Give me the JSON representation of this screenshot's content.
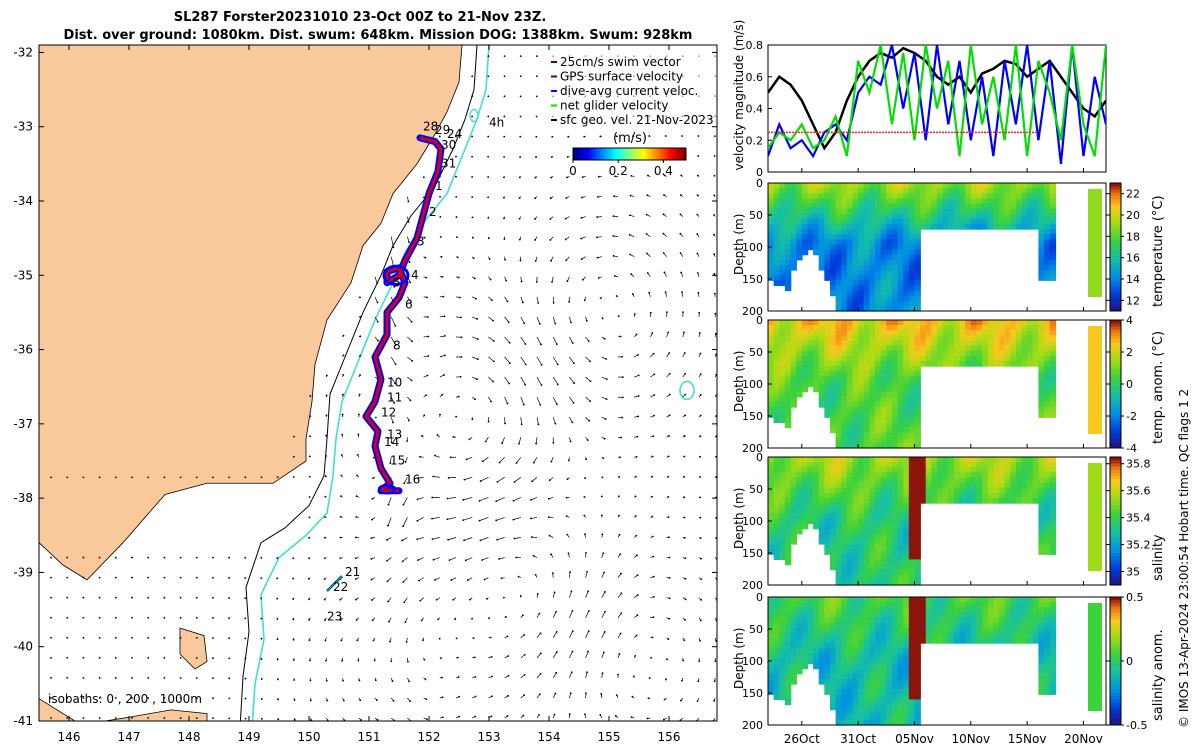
{
  "header": {
    "title_line1": "SL287 Forster20231010 23-Oct 00Z to 21-Nov 23Z.",
    "title_line2": "Dist. over ground: 1080km. Dist. swum: 648km. Mission DOG: 1388km. Swum: 928km"
  },
  "side_note": "© IMOS 13-Apr-2024 23:00:54 Hobart time. QC flags 1  2",
  "colors": {
    "land": "#F9C89B",
    "isobath_cyan": "#40E0D0",
    "track_red": "#DD0000",
    "track_blue": "#0000FF",
    "net_green": "#00E000",
    "mag_black": "#000000",
    "ref_red": "#FF2020"
  },
  "chart_data": [
    {
      "type": "scatter",
      "name": "map",
      "xlim": [
        145.5,
        156.8
      ],
      "ylim": [
        -41,
        -31.9
      ],
      "xticks": [
        "146",
        "147",
        "148",
        "149",
        "150",
        "151",
        "152",
        "153",
        "154",
        "155",
        "156"
      ],
      "yticks": [
        "-32",
        "-33",
        "-34",
        "-35",
        "-36",
        "-37",
        "-38",
        "-39",
        "-40",
        "-41"
      ],
      "legend": {
        "placement": "top-right",
        "entries": [
          "25cm/s swim vector",
          "GPS surface velocity",
          "dive-avg current veloc.",
          "net glider velocity",
          "sfc geo. vel. 21-Nov-2023"
        ]
      },
      "colorbar": {
        "label": "(m/s)",
        "ticks": [
          "0",
          "0.2",
          "0.4"
        ],
        "range": [
          0,
          0.5
        ]
      },
      "isobath_label": "isobaths: 0 , 200 , 1000m",
      "track": [
        [
          151.85,
          -33.15
        ],
        [
          152.1,
          -33.2
        ],
        [
          152.2,
          -33.3
        ],
        [
          152.15,
          -33.6
        ],
        [
          152.0,
          -33.9
        ],
        [
          151.9,
          -34.2
        ],
        [
          151.8,
          -34.5
        ],
        [
          151.6,
          -34.8
        ],
        [
          151.5,
          -35.0
        ],
        [
          151.3,
          -35.1
        ],
        [
          151.3,
          -34.95
        ],
        [
          151.5,
          -34.9
        ],
        [
          151.6,
          -35.1
        ],
        [
          151.5,
          -35.3
        ],
        [
          151.3,
          -35.5
        ],
        [
          151.3,
          -35.8
        ],
        [
          151.1,
          -36.1
        ],
        [
          151.2,
          -36.4
        ],
        [
          151.1,
          -36.7
        ],
        [
          150.95,
          -36.9
        ],
        [
          151.15,
          -37.1
        ],
        [
          151.1,
          -37.3
        ],
        [
          151.2,
          -37.6
        ],
        [
          151.35,
          -37.8
        ],
        [
          151.2,
          -37.9
        ],
        [
          151.5,
          -37.9
        ]
      ],
      "track_labels": [
        {
          "text": "28",
          "lon": 151.9,
          "lat": -33.05
        },
        {
          "text": "29",
          "lon": 152.1,
          "lat": -33.1
        },
        {
          "text": "24",
          "lon": 152.3,
          "lat": -33.15
        },
        {
          "text": "30",
          "lon": 152.2,
          "lat": -33.3
        },
        {
          "text": "31",
          "lon": 152.2,
          "lat": -33.55
        },
        {
          "text": "1",
          "lon": 152.1,
          "lat": -33.85
        },
        {
          "text": "2",
          "lon": 152.0,
          "lat": -34.2
        },
        {
          "text": "3",
          "lon": 151.8,
          "lat": -34.6
        },
        {
          "text": "4",
          "lon": 151.7,
          "lat": -35.05
        },
        {
          "text": "5",
          "lon": 151.4,
          "lat": -35.15
        },
        {
          "text": "6",
          "lon": 151.6,
          "lat": -35.45
        },
        {
          "text": "8",
          "lon": 151.4,
          "lat": -36.0
        },
        {
          "text": "10",
          "lon": 151.3,
          "lat": -36.5
        },
        {
          "text": "11",
          "lon": 151.3,
          "lat": -36.7
        },
        {
          "text": "12",
          "lon": 151.2,
          "lat": -36.9
        },
        {
          "text": "13",
          "lon": 151.3,
          "lat": -37.2
        },
        {
          "text": "14",
          "lon": 151.25,
          "lat": -37.3
        },
        {
          "text": "15",
          "lon": 151.35,
          "lat": -37.55
        },
        {
          "text": "16",
          "lon": 151.6,
          "lat": -37.8
        },
        {
          "text": "21",
          "lon": 150.6,
          "lat": -39.05
        },
        {
          "text": "22",
          "lon": 150.4,
          "lat": -39.25
        },
        {
          "text": "23",
          "lon": 150.3,
          "lat": -39.65
        },
        {
          "text": "4h",
          "lon": 153.0,
          "lat": -33.0
        }
      ]
    },
    {
      "type": "line",
      "name": "velocity",
      "ylabel": "velocity magnitude (m/s)",
      "ylim": [
        0,
        0.8
      ],
      "yticks": [
        "0",
        "0.2",
        "0.4",
        "0.6",
        "0.8"
      ],
      "t_range": [
        23,
        53
      ],
      "series": [
        {
          "color": "#000000",
          "t": [
            23,
            24,
            25,
            26,
            27,
            28,
            29,
            30,
            31,
            32,
            33,
            34,
            35,
            36,
            37,
            38,
            39,
            40,
            41,
            42,
            43,
            44,
            45,
            46,
            47,
            48,
            49,
            50,
            51,
            52,
            53
          ],
          "values": [
            0.5,
            0.6,
            0.55,
            0.45,
            0.3,
            0.15,
            0.25,
            0.45,
            0.6,
            0.7,
            0.75,
            0.72,
            0.78,
            0.75,
            0.7,
            0.6,
            0.55,
            0.6,
            0.5,
            0.62,
            0.65,
            0.7,
            0.68,
            0.6,
            0.65,
            0.7,
            0.6,
            0.5,
            0.4,
            0.35,
            0.45
          ]
        },
        {
          "color": "#0000FF",
          "t": [
            23,
            24,
            25,
            26,
            27,
            28,
            29,
            30,
            31,
            32,
            33,
            34,
            35,
            36,
            37,
            38,
            39,
            40,
            41,
            42,
            43,
            44,
            45,
            46,
            47,
            48,
            49,
            50,
            51,
            52,
            53
          ],
          "values": [
            0.1,
            0.3,
            0.15,
            0.2,
            0.1,
            0.25,
            0.3,
            0.2,
            0.5,
            0.6,
            0.55,
            0.8,
            0.4,
            0.75,
            0.2,
            0.8,
            0.3,
            0.7,
            0.2,
            0.6,
            0.1,
            0.7,
            0.3,
            0.8,
            0.2,
            0.7,
            0.05,
            0.8,
            0.1,
            0.6,
            0.3
          ]
        },
        {
          "color": "#00E000",
          "t": [
            23,
            24,
            25,
            26,
            27,
            28,
            29,
            30,
            31,
            32,
            33,
            34,
            35,
            36,
            37,
            38,
            39,
            40,
            41,
            42,
            43,
            44,
            45,
            46,
            47,
            48,
            49,
            50,
            51,
            52,
            53
          ],
          "values": [
            0.15,
            0.25,
            0.2,
            0.3,
            0.15,
            0.2,
            0.35,
            0.1,
            0.7,
            0.5,
            0.8,
            0.3,
            0.75,
            0.2,
            0.8,
            0.4,
            0.7,
            0.1,
            0.8,
            0.3,
            0.6,
            0.2,
            0.8,
            0.1,
            0.7,
            0.5,
            0.2,
            0.8,
            0.3,
            0.1,
            0.8
          ]
        },
        {
          "color": "#FF2020",
          "t": [
            23,
            47
          ],
          "values": [
            0.25,
            0.25
          ]
        }
      ]
    },
    {
      "type": "heatmap",
      "name": "temperature",
      "ylabel": "Depth (m)",
      "cbar_label": "temperature (°C)",
      "cbar_ticks": [
        "22",
        "20",
        "18",
        "16",
        "14",
        "12"
      ],
      "clim": [
        11,
        23
      ],
      "surface_value": 19,
      "deep_value": 14
    },
    {
      "type": "heatmap",
      "name": "temp_anom",
      "ylabel": "Depth (m)",
      "cbar_label": "temp. anom. (°C)",
      "cbar_ticks": [
        "4",
        "2",
        "0",
        "-2",
        "-4"
      ],
      "clim": [
        -4,
        4
      ],
      "surface_value": 2.5,
      "deep_value": 0.5
    },
    {
      "type": "heatmap",
      "name": "salinity",
      "ylabel": "Depth (m)",
      "cbar_label": "salinity",
      "cbar_ticks": [
        "35.8",
        "35.6",
        "35.4",
        "35.2",
        "35"
      ],
      "clim": [
        34.9,
        35.85
      ],
      "surface_value": 35.55,
      "deep_value": 35.35
    },
    {
      "type": "heatmap",
      "name": "sal_anom",
      "ylabel": "Depth (m)",
      "cbar_label": "salinity anom.",
      "cbar_ticks": [
        "0.5",
        "0",
        "-0.5"
      ],
      "clim": [
        -0.5,
        0.5
      ],
      "surface_value": 0.05,
      "deep_value": -0.1
    },
    {
      "type": "time_axis",
      "name": "time_axis",
      "t_range": [
        23,
        53
      ],
      "depth_ticks": [
        "0",
        "50",
        "100",
        "150",
        "200"
      ],
      "ticks": [
        {
          "t": 26,
          "label": "26Oct"
        },
        {
          "t": 31,
          "label": "31Oct"
        },
        {
          "t": 36,
          "label": "05Nov"
        },
        {
          "t": 41,
          "label": "10Nov"
        },
        {
          "t": 46,
          "label": "15Nov"
        },
        {
          "t": 51,
          "label": "20Nov"
        }
      ]
    }
  ]
}
